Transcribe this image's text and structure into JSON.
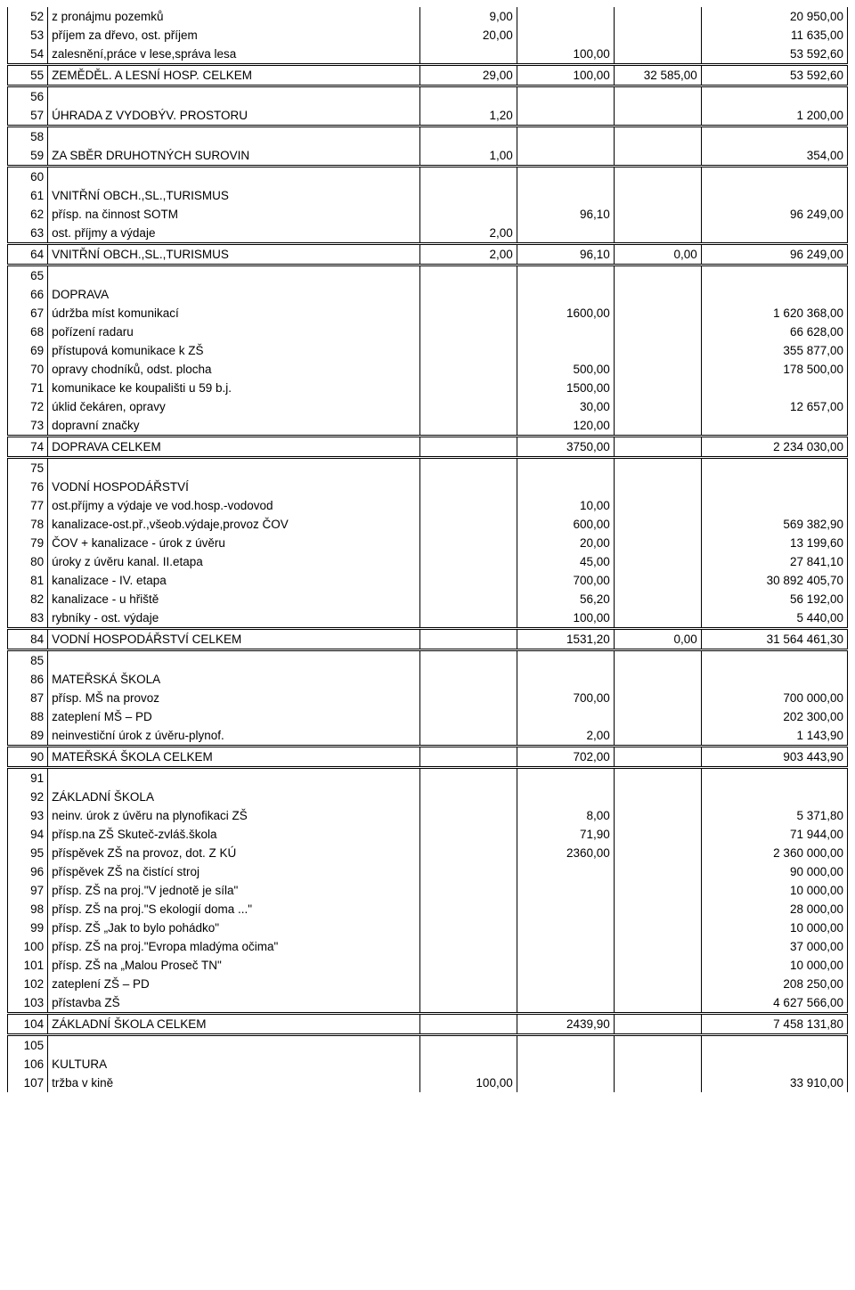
{
  "rows": [
    {
      "n": "52",
      "desc": "z pronájmu pozemků",
      "c1": "9,00",
      "c4": "20 950,00"
    },
    {
      "n": "53",
      "desc": "příjem za dřevo, ost. příjem",
      "c1": "20,00",
      "c4": "11 635,00"
    },
    {
      "n": "54",
      "desc": "zalesnění,práce v lese,správa lesa",
      "c2": "100,00",
      "c4": "53 592,60"
    },
    {
      "n": "55",
      "desc": "ZEMĚDĚL. A LESNÍ HOSP. CELKEM",
      "c1": "29,00",
      "c2": "100,00",
      "c3": "32 585,00",
      "c4": "53 592,60",
      "dblTop": true,
      "dblBot": true
    },
    {
      "n": "56"
    },
    {
      "n": "57",
      "desc": "ÚHRADA Z VYDOBÝV. PROSTORU",
      "c1": "1,20",
      "c4": "1 200,00",
      "dblBot": true
    },
    {
      "n": "58"
    },
    {
      "n": "59",
      "desc": "ZA SBĚR DRUHOTNÝCH SUROVIN",
      "c1": "1,00",
      "c4": "354,00",
      "dblBot": true
    },
    {
      "n": "60"
    },
    {
      "n": "61",
      "desc": "VNITŘNÍ OBCH.,SL.,TURISMUS"
    },
    {
      "n": "62",
      "desc": "přísp. na činnost SOTM",
      "c2": "96,10",
      "c4": "96 249,00"
    },
    {
      "n": "63",
      "desc": "ost. příjmy a výdaje",
      "c1": "2,00"
    },
    {
      "n": "64",
      "desc": "VNITŘNÍ OBCH.,SL.,TURISMUS",
      "c1": "2,00",
      "c2": "96,10",
      "c3": "0,00",
      "c4": "96 249,00",
      "dblTop": true,
      "dblBot": true
    },
    {
      "n": "65"
    },
    {
      "n": "66",
      "desc": "DOPRAVA"
    },
    {
      "n": "67",
      "desc": "údržba míst komunikací",
      "c2": "1600,00",
      "c4": "1 620 368,00"
    },
    {
      "n": "68",
      "desc": "pořízení radaru",
      "c4": "66 628,00"
    },
    {
      "n": "69",
      "desc": "přístupová komunikace k ZŠ",
      "c4": "355 877,00"
    },
    {
      "n": "70",
      "desc": "opravy chodníků, odst. plocha",
      "c2": "500,00",
      "c4": "178 500,00"
    },
    {
      "n": "71",
      "desc": "komunikace ke koupališti u 59 b.j.",
      "c2": "1500,00"
    },
    {
      "n": "72",
      "desc": "úklid čekáren, opravy",
      "c2": "30,00",
      "c4": "12 657,00"
    },
    {
      "n": "73",
      "desc": "dopravní značky",
      "c2": "120,00"
    },
    {
      "n": "74",
      "desc": "DOPRAVA CELKEM",
      "c2": "3750,00",
      "c4": "2 234 030,00",
      "dblTop": true,
      "dblBot": true
    },
    {
      "n": "75"
    },
    {
      "n": "76",
      "desc": "VODNÍ HOSPODÁŘSTVÍ"
    },
    {
      "n": "77",
      "desc": "ost.příjmy a výdaje ve vod.hosp.-vodovod",
      "c2": "10,00"
    },
    {
      "n": "78",
      "desc": "kanalizace-ost.př.,všeob.výdaje,provoz ČOV",
      "c2": "600,00",
      "c4": "569 382,90"
    },
    {
      "n": "79",
      "desc": "ČOV + kanalizace - úrok z úvěru",
      "c2": "20,00",
      "c4": "13 199,60"
    },
    {
      "n": "80",
      "desc": "úroky z úvěru kanal. II.etapa",
      "c2": "45,00",
      "c4": "27 841,10"
    },
    {
      "n": "81",
      "desc": "kanalizace - IV. etapa",
      "c2": "700,00",
      "c4": "30 892 405,70"
    },
    {
      "n": "82",
      "desc": "kanalizace  - u hřiště",
      "c2": "56,20",
      "c4": "56 192,00"
    },
    {
      "n": "83",
      "desc": "rybníky - ost. výdaje",
      "c2": "100,00",
      "c4": "5 440,00"
    },
    {
      "n": "84",
      "desc": "VODNÍ HOSPODÁŘSTVÍ CELKEM",
      "c2": "1531,20",
      "c3": "0,00",
      "c4": "31 564 461,30",
      "dblTop": true,
      "dblBot": true
    },
    {
      "n": "85"
    },
    {
      "n": "86",
      "desc": "MATEŘSKÁ ŠKOLA"
    },
    {
      "n": "87",
      "desc": "přísp. MŠ na provoz",
      "c2": "700,00",
      "c4": "700 000,00"
    },
    {
      "n": "88",
      "desc": "zateplení MŠ – PD",
      "c4": "202 300,00"
    },
    {
      "n": "89",
      "desc": "neinvestiční úrok z úvěru-plynof.",
      "c2": "2,00",
      "c4": "1 143,90"
    },
    {
      "n": "90",
      "desc": "MATEŘSKÁ ŠKOLA CELKEM",
      "c2": "702,00",
      "c4": "903 443,90",
      "dblTop": true,
      "dblBot": true
    },
    {
      "n": "91"
    },
    {
      "n": "92",
      "desc": "ZÁKLADNÍ ŠKOLA"
    },
    {
      "n": "93",
      "desc": "neinv. úrok z úvěru na plynofikaci ZŠ",
      "c2": "8,00",
      "c4": "5 371,80"
    },
    {
      "n": "94",
      "desc": "přísp.na ZŠ Skuteč-zvláš.škola",
      "c2": "71,90",
      "c4": "71 944,00"
    },
    {
      "n": "95",
      "desc": "příspěvek ZŠ na provoz, dot. Z KÚ",
      "c2": "2360,00",
      "c4": "2 360 000,00"
    },
    {
      "n": "96",
      "desc": "příspěvek ZŠ na čistící stroj",
      "c4": "90 000,00"
    },
    {
      "n": "97",
      "desc": "přísp. ZŠ na proj.\"V jednotě je síla\"",
      "c4": "10 000,00"
    },
    {
      "n": "98",
      "desc": "přísp. ZŠ na proj.\"S ekologií doma ...\"",
      "c4": "28 000,00"
    },
    {
      "n": "99",
      "desc": "přísp. ZŠ „Jak to bylo pohádko\"",
      "c4": "10 000,00"
    },
    {
      "n": "100",
      "desc": "přísp. ZŠ na proj.\"Evropa mladýma očima\"",
      "c4": "37 000,00"
    },
    {
      "n": "101",
      "desc": "přísp. ZŠ na „Malou Proseč TN\"",
      "c4": "10 000,00"
    },
    {
      "n": "102",
      "desc": "zateplení ZŠ – PD",
      "c4": "208 250,00"
    },
    {
      "n": "103",
      "desc": "přístavba ZŠ",
      "c4": "4 627 566,00"
    },
    {
      "n": "104",
      "desc": "ZÁKLADNÍ ŠKOLA CELKEM",
      "c2": "2439,90",
      "c4": "7 458 131,80",
      "dblTop": true,
      "dblBot": true
    },
    {
      "n": "105"
    },
    {
      "n": "106",
      "desc": "KULTURA"
    },
    {
      "n": "107",
      "desc": "tržba v kině",
      "c1": "100,00",
      "c4": "33 910,00"
    }
  ]
}
